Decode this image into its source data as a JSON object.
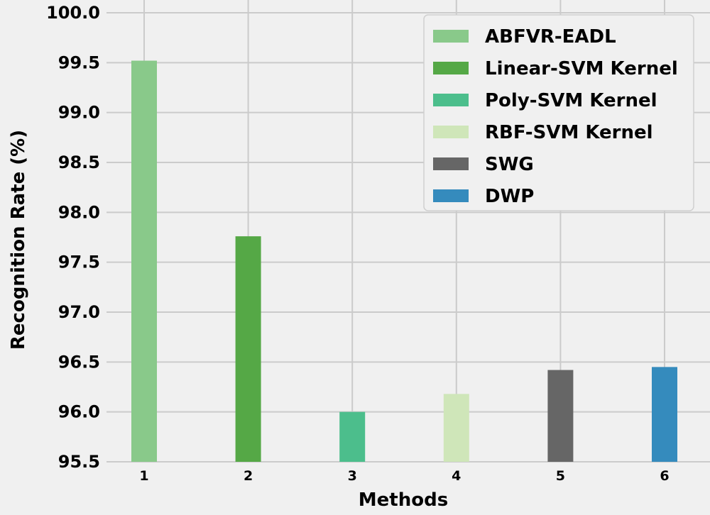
{
  "chart_data": {
    "type": "bar",
    "title": "",
    "xlabel": "Methods",
    "ylabel": "Recognition Rate (%)",
    "categories": [
      "1",
      "2",
      "3",
      "4",
      "5",
      "6"
    ],
    "series": [
      {
        "name": "ABFVR-EADL",
        "category": "1",
        "value": 99.52,
        "color": "#89c98a"
      },
      {
        "name": "Linear-SVM Kernel",
        "category": "2",
        "value": 97.76,
        "color": "#55a846"
      },
      {
        "name": "Poly-SVM Kernel",
        "category": "3",
        "value": 96.0,
        "color": "#4cbe8c"
      },
      {
        "name": "RBF-SVM Kernel",
        "category": "4",
        "value": 96.18,
        "color": "#cfe6b9"
      },
      {
        "name": "SWG",
        "category": "5",
        "value": 96.42,
        "color": "#666666"
      },
      {
        "name": "DWP",
        "category": "6",
        "value": 96.45,
        "color": "#358bbd"
      }
    ],
    "ylim": [
      95.5,
      100.0
    ],
    "yticks": [
      "95.5",
      "96.0",
      "96.5",
      "97.0",
      "97.5",
      "98.0",
      "98.5",
      "99.0",
      "99.5",
      "100.0"
    ],
    "grid": true,
    "legend_position": "top-right"
  }
}
